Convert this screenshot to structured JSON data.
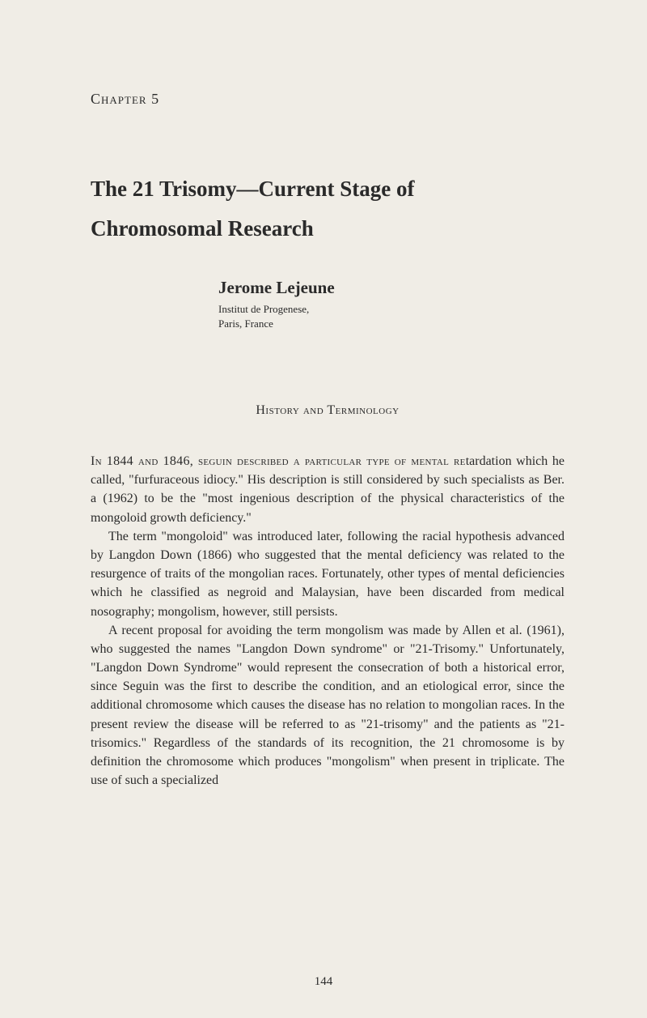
{
  "chapter": {
    "label": "Chapter 5"
  },
  "title": {
    "line1": "The 21 Trisomy—Current Stage of",
    "line2": "Chromosomal Research"
  },
  "author": {
    "name": "Jerome Lejeune",
    "affiliation1": "Institut de Progenese,",
    "affiliation2": "Paris, France"
  },
  "section": {
    "heading": "History and Terminology"
  },
  "body": {
    "p1_opening": "In 1844 and 1846, seguin described a particular type of mental re",
    "p1_rest": "tardation which he called, \"furfuraceous idiocy.\" His description is still considered by such specialists as Ber. a (1962) to be the \"most ingenious description of the physical characteristics of the mongoloid growth deficiency.\"",
    "p2": "The term \"mongoloid\" was introduced later, following the racial hypothesis advanced by Langdon Down (1866) who suggested that the mental deficiency was related to the resurgence of traits of the mongolian races. Fortunately, other types of mental deficiencies which he classified as negroid and Malaysian, have been discarded from medical nosography; mongolism, however, still persists.",
    "p3": "A recent proposal for avoiding the term mongolism was made by Allen et al. (1961), who suggested the names \"Langdon Down syndrome\" or \"21-Trisomy.\" Unfortunately, \"Langdon Down Syndrome\" would represent the consecration of both a historical error, since Seguin was the first to describe the condition, and an etiological error, since the additional chromosome which causes the disease has no relation to mongolian races. In the present review the disease will be referred to as \"21-trisomy\" and the patients as \"21-trisomics.\" Regardless of the standards of its recognition, the 21 chromosome is by definition the chromosome which produces \"mongolism\" when present in triplicate. The use of such a specialized"
  },
  "pageNumber": "144"
}
